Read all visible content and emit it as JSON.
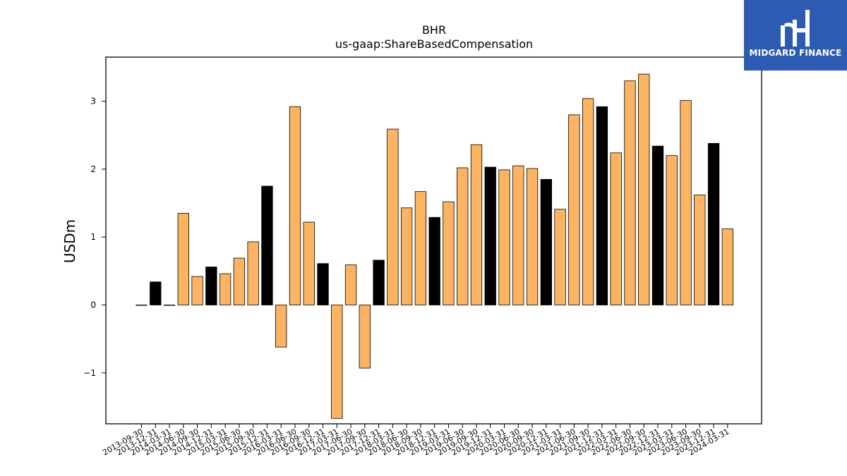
{
  "chart_data": {
    "type": "bar",
    "title": "BHR",
    "subtitle": "us-gaap:ShareBasedCompensation",
    "ylabel": "USDm",
    "xlabel": "",
    "ylim": [
      -1.75,
      3.65
    ],
    "yticks": [
      -1,
      0,
      1,
      2,
      3
    ],
    "ytick_labels": [
      "−1",
      "0",
      "1",
      "2",
      "3"
    ],
    "grid": false,
    "colors": {
      "q4": "#000000",
      "other": "#fdb462",
      "edge": "#000000"
    },
    "categories": [
      "2013-09-30",
      "2013-12-31",
      "2014-03-31",
      "2014-06-30",
      "2014-09-30",
      "2014-12-31",
      "2015-03-31",
      "2015-06-30",
      "2015-09-30",
      "2015-12-31",
      "2016-03-31",
      "2016-06-30",
      "2016-09-30",
      "2016-12-31",
      "2017-03-31",
      "2017-06-30",
      "2017-09-30",
      "2017-12-31",
      "2018-03-31",
      "2018-06-30",
      "2018-09-30",
      "2018-12-31",
      "2019-03-31",
      "2019-06-30",
      "2019-09-30",
      "2019-12-31",
      "2020-03-31",
      "2020-06-30",
      "2020-09-30",
      "2020-12-31",
      "2021-03-31",
      "2021-06-30",
      "2021-09-30",
      "2021-12-31",
      "2022-03-31",
      "2022-06-30",
      "2022-09-30",
      "2022-12-31",
      "2023-03-31",
      "2023-06-30",
      "2023-09-30",
      "2023-12-31",
      "2024-03-31"
    ],
    "values": [
      0.0,
      0.34,
      0.0,
      1.35,
      0.42,
      0.56,
      0.46,
      0.69,
      0.93,
      1.75,
      -0.62,
      2.92,
      1.22,
      0.61,
      -1.67,
      0.59,
      -0.93,
      0.66,
      2.59,
      1.43,
      1.67,
      1.29,
      1.52,
      2.02,
      2.36,
      2.03,
      1.99,
      2.05,
      2.01,
      1.85,
      1.41,
      2.8,
      3.04,
      2.92,
      2.24,
      3.3,
      3.4,
      2.34,
      2.2,
      3.01,
      1.62,
      2.38,
      1.12
    ]
  },
  "brand": {
    "name": "MIDGARD FINANCE",
    "icon": "midgard-logo-icon",
    "color": "#2d5bb1"
  }
}
